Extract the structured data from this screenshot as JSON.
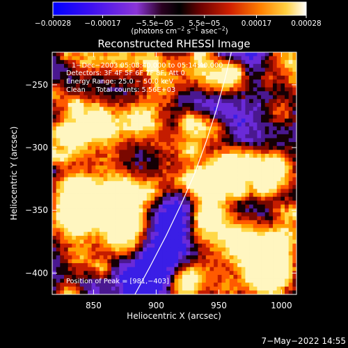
{
  "chart_data": {
    "type": "heatmap",
    "title": "Reconstructed RHESSI Image",
    "xlabel": "Heliocentric X (arcsec)",
    "ylabel": "Heliocentric Y (arcsec)",
    "xlim": [
      817,
      1012
    ],
    "ylim": [
      -417,
      -224
    ],
    "x_ticks": [
      850,
      900,
      950,
      1000
    ],
    "x_tick_labels": [
      "850",
      "900",
      "950",
      "1000"
    ],
    "y_ticks": [
      -400,
      -350,
      -300,
      -250
    ],
    "y_tick_labels": [
      "−400",
      "−350",
      "−300",
      "−250"
    ],
    "colorbar": {
      "range": [
        -0.00028,
        0.00028
      ],
      "tick_values": [
        -0.00028,
        -0.00017,
        -5.5e-05,
        5.5e-05,
        0.00017,
        0.00028
      ],
      "tick_labels": [
        "−0.00028",
        "−0.00017",
        "−5.5e−05",
        "5.5e−05",
        "0.00017",
        "0.00028"
      ],
      "unit_parts": [
        "(photons cm",
        "−2",
        " s",
        "−1",
        " asec",
        "−2",
        ")"
      ],
      "colormap": [
        "#000000",
        "#1a0dff",
        "#7a2fd6",
        "#3c0000",
        "#b01000",
        "#ff5a00",
        "#ffb000",
        "#ffe060",
        "#ffffff"
      ]
    },
    "annotations": [
      "1−Dec−2003 05:08:40.000 to 05:14:40.000",
      "Detectors: 3F 4F 5F 6F 7F 8F, Att 0",
      "Energy Range: 25.0 − 50.0 keV",
      "Clean     Total counts: 5.56E+03"
    ],
    "peak_label": "Position of Peak = [981,−403]",
    "peak_position": [
      981,
      -403
    ],
    "limb": [
      [
        883,
        -417
      ],
      [
        895,
        -395
      ],
      [
        908,
        -370
      ],
      [
        920,
        -345
      ],
      [
        931,
        -320
      ],
      [
        940,
        -295
      ],
      [
        948,
        -270
      ],
      [
        955,
        -245
      ],
      [
        960,
        -224
      ]
    ],
    "footer_date": "7−May−2022 14:55"
  }
}
